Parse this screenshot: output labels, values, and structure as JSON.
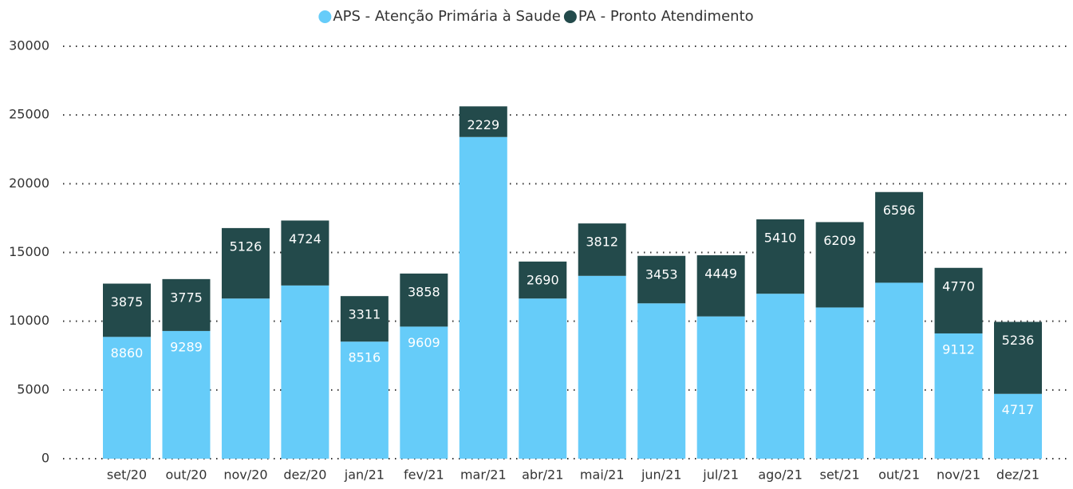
{
  "chart_data": {
    "type": "stacked_bar",
    "categories": [
      "set/20",
      "out/20",
      "nov/20",
      "dez/20",
      "jan/21",
      "fev/21",
      "mar/21",
      "abr/21",
      "mai/21",
      "jun/21",
      "jul/21",
      "ago/21",
      "set/21",
      "out/21",
      "nov/21",
      "dez/21"
    ],
    "series": [
      {
        "name": "APS - Atenção Primária à Saude",
        "color": "#66ccf9",
        "values": [
          8860,
          9289,
          11650,
          12600,
          8516,
          9609,
          23400,
          11650,
          13300,
          11300,
          10350,
          12000,
          11000,
          12800,
          9112,
          4717
        ],
        "value_labels": [
          "8860",
          "9289",
          null,
          null,
          "8516",
          "9609",
          null,
          null,
          null,
          null,
          null,
          null,
          null,
          null,
          "9112",
          "4717"
        ]
      },
      {
        "name": "PA - Pronto Atendimento",
        "color": "#234a4b",
        "values": [
          3875,
          3775,
          5126,
          4724,
          3311,
          3858,
          2229,
          2690,
          3812,
          3453,
          4449,
          5410,
          6209,
          6596,
          4770,
          5236
        ]
      }
    ],
    "ylim": [
      0,
      30000
    ],
    "yticks": [
      0,
      5000,
      10000,
      15000,
      20000,
      25000,
      30000
    ],
    "grid": true,
    "legend": "top"
  }
}
